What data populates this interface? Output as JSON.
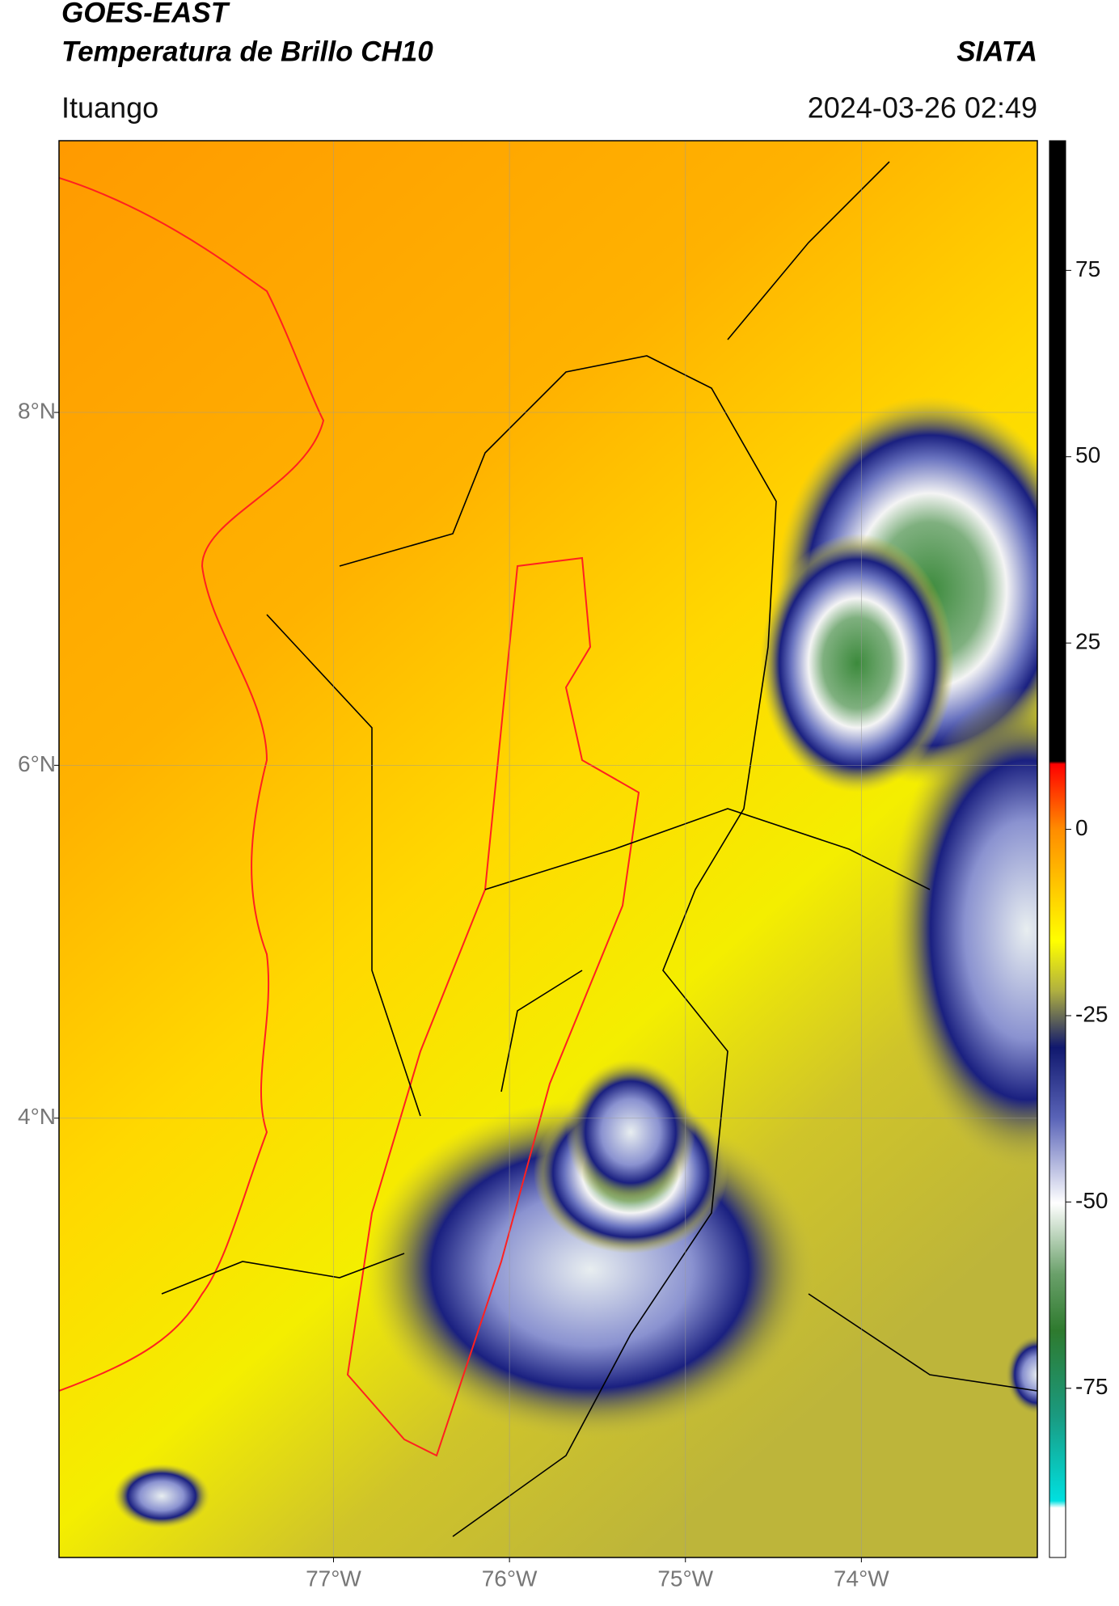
{
  "header": {
    "satellite": "GOES-EAST",
    "product": "Temperatura de Brillo CH10",
    "institution": "SIATA",
    "location": "Ituango",
    "datetime": "2024-03-26 02:49"
  },
  "map": {
    "lonlim": [
      -78.56,
      -73.0
    ],
    "latlim": [
      1.51,
      9.54
    ],
    "lonticks": [
      {
        "value": -77,
        "label": "77°W"
      },
      {
        "value": -76,
        "label": "76°W"
      },
      {
        "value": -75,
        "label": "75°W"
      },
      {
        "value": -74,
        "label": "74°W"
      }
    ],
    "latticks": [
      {
        "value": 8,
        "label": "8°N"
      },
      {
        "value": 6,
        "label": "6°N"
      },
      {
        "value": 4,
        "label": "4°N"
      }
    ],
    "grid": true
  },
  "colorbar": {
    "clim": [
      -97.7,
      92.4
    ],
    "ticks": [
      75,
      50,
      25,
      0,
      -25,
      -50,
      -75
    ]
  }
}
